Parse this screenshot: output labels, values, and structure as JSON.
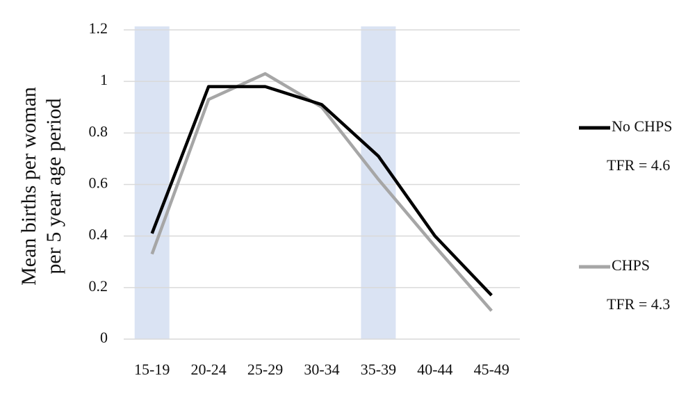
{
  "chart_data": {
    "type": "line",
    "y_label": [
      "Mean births per woman",
      "per 5 year age period"
    ],
    "categories": [
      "15-19",
      "20-24",
      "25-29",
      "30-34",
      "35-39",
      "40-44",
      "45-49"
    ],
    "series": [
      {
        "name": "No CHPS",
        "note": "TFR = 4.6",
        "color": "#000000",
        "values": [
          0.41,
          0.98,
          0.98,
          0.91,
          0.71,
          0.4,
          0.17
        ]
      },
      {
        "name": "CHPS",
        "note": "TFR = 4.3",
        "color": "#a6a6a6",
        "values": [
          0.33,
          0.93,
          1.03,
          0.9,
          0.62,
          0.36,
          0.11
        ]
      }
    ],
    "highlight": [
      0,
      4
    ],
    "highlight_color": "#dae3f3",
    "ylim": [
      0,
      1.2
    ],
    "yticks": [
      0,
      0.2,
      0.4,
      0.6,
      0.8,
      1,
      1.2
    ],
    "grid": true,
    "legend": "right"
  }
}
